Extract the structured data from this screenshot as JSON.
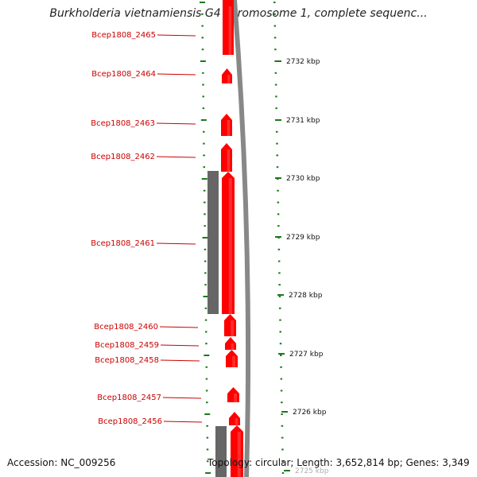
{
  "title": "Burkholderia vietnamiensis G4 chromosome 1, complete sequenc...",
  "accession": "Accession: NC_009256",
  "topology": "Topology: circular; Length: 3,652,814 bp; Genes: 3,349",
  "colors": {
    "gene_red": "#ff0000",
    "gene_gray": "#666666",
    "label_red": "#cc0000",
    "tick_green": "#1a7a1a",
    "backbone_gray": "#888888"
  },
  "gene_labels": [
    "Bcep1808_2465",
    "Bcep1808_2464",
    "Bcep1808_2463",
    "Bcep1808_2462",
    "Bcep1808_2461",
    "Bcep1808_2460",
    "Bcep1808_2459",
    "Bcep1808_2458",
    "Bcep1808_2457",
    "Bcep1808_2456"
  ],
  "kbp_ticks": [
    "2732 kbp",
    "2731 kbp",
    "2730 kbp",
    "2729 kbp",
    "2728 kbp",
    "2727 kbp",
    "2726 kbp",
    "2725 kbp"
  ]
}
